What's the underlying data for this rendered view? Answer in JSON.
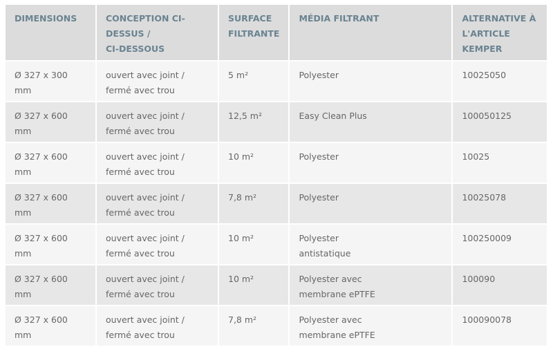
{
  "headers": [
    "DIMENSIONS",
    "CONCEPTION CI-\nDESSUS /\nCI-DESSOUS",
    "SURFACE FILTRANTE",
    "MÉDIA FILTRANT",
    "ALTERNATIVE À L'ARTICLE KEMPER"
  ],
  "rows": [
    [
      "Ø 327 x 300 mm",
      "ouvert avec joint / fermé avec trou",
      "5 m²",
      "Polyester",
      "10025050"
    ],
    [
      "Ø 327 x 600 mm",
      "ouvert avec joint / fermé avec trou",
      "12,5 m²",
      "Easy Clean Plus",
      "100050125"
    ],
    [
      "Ø 327 x 600 mm",
      "ouvert avec joint / fermé avec trou",
      "10 m²",
      "Polyester",
      "10025"
    ],
    [
      "Ø 327 x 600 mm",
      "ouvert avec joint / fermé avec trou",
      "7,8 m²",
      "Polyester",
      "10025078"
    ],
    [
      "Ø 327 x 600 mm",
      "ouvert avec joint / fermé avec trou",
      "10 m²",
      "Polyester antistatique",
      "100250009"
    ],
    [
      "Ø 327 x 600 mm",
      "ouvert avec joint / fermé avec trou",
      "10 m²",
      "Polyester avec membrane ePTFE",
      "100090"
    ],
    [
      "Ø 327 x 600 mm",
      "ouvert avec joint / fermé avec trou",
      "7,8 m²",
      "Polyester avec membrane ePTFE",
      "100090078"
    ]
  ]
}
